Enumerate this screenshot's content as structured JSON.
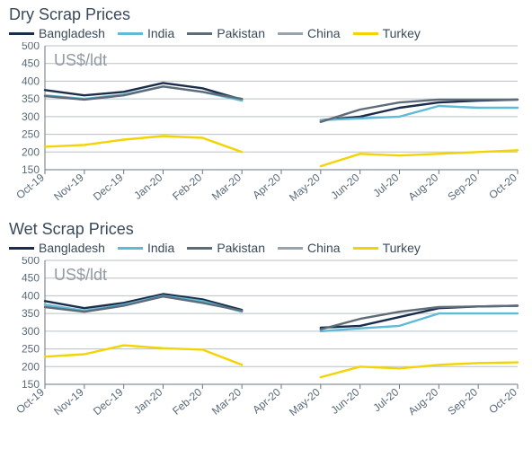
{
  "shared": {
    "background_color": "#ffffff",
    "axis_color": "#6a7682",
    "grid_color": "#b9c0c7",
    "tick_font_size": 12,
    "title_font_size": 18,
    "y_unit_label": "US$/ldt",
    "y_unit_font_size": 18,
    "x_categories": [
      "Oct-19",
      "Nov-19",
      "Dec-19",
      "Jan-20",
      "Feb-20",
      "Mar-20",
      "Apr-20",
      "May-20",
      "Jun-20",
      "Jul-20",
      "Aug-20",
      "Sep-20",
      "Oct-20"
    ],
    "y_ticks": [
      150,
      200,
      250,
      300,
      350,
      400,
      450,
      500
    ],
    "ylim": [
      150,
      500
    ],
    "legend": [
      {
        "label": "Bangladesh",
        "color": "#1a2d4a"
      },
      {
        "label": "India",
        "color": "#5fbad6"
      },
      {
        "label": "Pakistan",
        "color": "#5e6b78"
      },
      {
        "label": "China",
        "color": "#9aa2ab"
      },
      {
        "label": "Turkey",
        "color": "#f4d400"
      }
    ],
    "line_width": 2.4,
    "gap_months": [
      "Apr-20"
    ]
  },
  "panels": [
    {
      "title": "Dry Scrap Prices",
      "type": "line",
      "series": {
        "Bangladesh": {
          "color": "#1a2d4a",
          "points": {
            "Oct-19": 375,
            "Nov-19": 360,
            "Dec-19": 370,
            "Jan-20": 395,
            "Feb-20": 380,
            "Mar-20": 348,
            "May-20": 290,
            "Jun-20": 300,
            "Jul-20": 325,
            "Aug-20": 340,
            "Sep-20": 345,
            "Oct-20": 348
          }
        },
        "India": {
          "color": "#5fbad6",
          "points": {
            "Oct-19": 360,
            "Nov-19": 350,
            "Dec-19": 362,
            "Jan-20": 385,
            "Feb-20": 370,
            "Mar-20": 345,
            "May-20": 290,
            "Jun-20": 295,
            "Jul-20": 300,
            "Aug-20": 330,
            "Sep-20": 325,
            "Oct-20": 325
          }
        },
        "Pakistan": {
          "color": "#5e6b78",
          "points": {
            "Oct-19": 358,
            "Nov-19": 348,
            "Dec-19": 360,
            "Jan-20": 385,
            "Feb-20": 370,
            "Mar-20": 350,
            "May-20": 285,
            "Jun-20": 320,
            "Jul-20": 340,
            "Aug-20": 348,
            "Sep-20": 348,
            "Oct-20": 348
          }
        },
        "Turkey": {
          "color": "#f4d400",
          "points": {
            "Oct-19": 215,
            "Nov-19": 220,
            "Dec-19": 235,
            "Jan-20": 245,
            "Feb-20": 240,
            "Mar-20": 200,
            "May-20": 160,
            "Jun-20": 195,
            "Jul-20": 190,
            "Aug-20": 195,
            "Sep-20": 200,
            "Oct-20": 205
          }
        }
      }
    },
    {
      "title": "Wet Scrap Prices",
      "type": "line",
      "series": {
        "Bangladesh": {
          "color": "#1a2d4a",
          "points": {
            "Oct-19": 385,
            "Nov-19": 365,
            "Dec-19": 380,
            "Jan-20": 405,
            "Feb-20": 390,
            "Mar-20": 360,
            "May-20": 310,
            "Jun-20": 315,
            "Jul-20": 340,
            "Aug-20": 365,
            "Sep-20": 370,
            "Oct-20": 372
          }
        },
        "India": {
          "color": "#5fbad6",
          "points": {
            "Oct-19": 375,
            "Nov-19": 358,
            "Dec-19": 375,
            "Jan-20": 400,
            "Feb-20": 385,
            "Mar-20": 355,
            "May-20": 300,
            "Jun-20": 308,
            "Jul-20": 315,
            "Aug-20": 350,
            "Sep-20": 350,
            "Oct-20": 350
          }
        },
        "Pakistan": {
          "color": "#5e6b78",
          "points": {
            "Oct-19": 368,
            "Nov-19": 355,
            "Dec-19": 372,
            "Jan-20": 398,
            "Feb-20": 380,
            "Mar-20": 358,
            "May-20": 305,
            "Jun-20": 335,
            "Jul-20": 355,
            "Aug-20": 368,
            "Sep-20": 370,
            "Oct-20": 372
          }
        },
        "Turkey": {
          "color": "#f4d400",
          "points": {
            "Oct-19": 228,
            "Nov-19": 235,
            "Dec-19": 260,
            "Jan-20": 252,
            "Feb-20": 248,
            "Mar-20": 205,
            "May-20": 170,
            "Jun-20": 200,
            "Jul-20": 195,
            "Aug-20": 205,
            "Sep-20": 210,
            "Oct-20": 212
          }
        }
      }
    }
  ]
}
